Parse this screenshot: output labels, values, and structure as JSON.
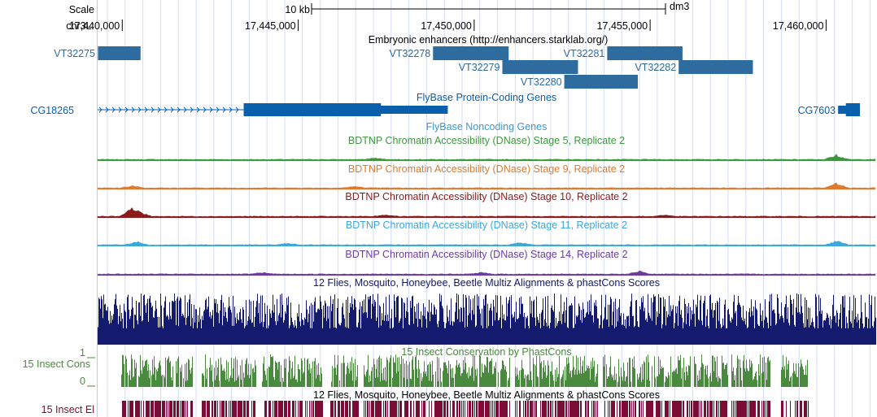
{
  "ruler": {
    "scale_label": "Scale",
    "scale_bar_label": "10 kb",
    "assembly": "dm3",
    "chrom_label": "chr3L:",
    "ticks": [
      {
        "pos": 17440000,
        "label": "17,440,000"
      },
      {
        "pos": 17445000,
        "label": "17,445,000"
      },
      {
        "pos": 17450000,
        "label": "17,450,000"
      },
      {
        "pos": 17455000,
        "label": "17,455,000"
      },
      {
        "pos": 17460000,
        "label": "17,460,000"
      }
    ]
  },
  "view": {
    "start": 17439300,
    "end": 17461400
  },
  "enhancers": {
    "title": "Embryonic enhancers (http://enhancers.starklab.org/)",
    "color": "#2e6b9e",
    "features": [
      {
        "name": "VT32275",
        "start": 17439310,
        "end": 17440520,
        "row": 0
      },
      {
        "name": "VT32278",
        "start": 17448830,
        "end": 17450980,
        "row": 0
      },
      {
        "name": "VT32281",
        "start": 17453780,
        "end": 17455920,
        "row": 0
      },
      {
        "name": "VT32279",
        "start": 17450800,
        "end": 17452950,
        "row": 1
      },
      {
        "name": "VT32282",
        "start": 17455810,
        "end": 17457920,
        "row": 1
      },
      {
        "name": "VT32280",
        "start": 17452560,
        "end": 17454650,
        "row": 2
      }
    ]
  },
  "coding_genes": {
    "title": "FlyBase Protein-Coding Genes",
    "color": "#0a5fad",
    "genes": [
      {
        "name": "CG18265",
        "intron_start": 17439300,
        "intron_end": 17443450,
        "thin": [
          17446700,
          17449250
        ],
        "thick": [
          17443450,
          17447350
        ]
      },
      {
        "name": "CG7603",
        "intron_start": 17460340,
        "intron_end": 17460960,
        "thin": [
          17460340,
          17460960
        ],
        "thick": [
          17460560,
          17460960
        ]
      }
    ]
  },
  "noncoding_genes": {
    "title": "FlyBase Noncoding Genes",
    "color": "#3a9ad9"
  },
  "dnase_tracks": [
    {
      "title": "BDTNP Chromatin Accessibility (DNase) Stage 5, Replicate 2",
      "color": "#3a9a3a",
      "peaks": [
        {
          "pos": 17460300,
          "height": 6
        },
        {
          "pos": 17447200,
          "height": 2
        }
      ]
    },
    {
      "title": "BDTNP Chromatin Accessibility (DNase) Stage 9, Replicate 2",
      "color": "#e07a2e",
      "peaks": [
        {
          "pos": 17440300,
          "height": 3
        },
        {
          "pos": 17460300,
          "height": 6
        },
        {
          "pos": 17446600,
          "height": 2
        }
      ]
    },
    {
      "title": "BDTNP Chromatin Accessibility (DNase) Stage 10, Replicate 2",
      "color": "#8b1a1a",
      "peaks": [
        {
          "pos": 17440260,
          "height": 9
        },
        {
          "pos": 17440500,
          "height": 5
        },
        {
          "pos": 17447500,
          "height": 2
        },
        {
          "pos": 17455400,
          "height": 2
        }
      ]
    },
    {
      "title": "BDTNP Chromatin Accessibility (DNase) Stage 11, Replicate 2",
      "color": "#3fa6d9",
      "peaks": [
        {
          "pos": 17440400,
          "height": 4
        },
        {
          "pos": 17460300,
          "height": 5
        },
        {
          "pos": 17451300,
          "height": 3
        },
        {
          "pos": 17444700,
          "height": 2
        }
      ]
    },
    {
      "title": "BDTNP Chromatin Accessibility (DNase) Stage 14, Replicate 2",
      "color": "#6b3d9e",
      "peaks": [
        {
          "pos": 17454700,
          "height": 4
        },
        {
          "pos": 17444000,
          "height": 2
        },
        {
          "pos": 17450200,
          "height": 2
        }
      ]
    }
  ],
  "multiz": {
    "title": "12 Flies, Mosquito, Honeybee, Beetle Multiz Alignments & phastCons Scores",
    "color": "#141a6e"
  },
  "phastcons": {
    "label": "15 Insect Cons",
    "title": "15 Insect Conservation by PhastCons",
    "color": "#4a8a3e",
    "ymax_label": "1",
    "ymin_label": "0",
    "gaps": [
      [
        17439300,
        17439950
      ],
      [
        17442000,
        17442250
      ],
      [
        17443800,
        17443950
      ],
      [
        17445700,
        17445900
      ],
      [
        17446700,
        17446850
      ],
      [
        17451000,
        17451150
      ],
      [
        17453500,
        17453650
      ],
      [
        17457200,
        17457300
      ],
      [
        17458400,
        17458700
      ],
      [
        17459500,
        17461400
      ]
    ]
  },
  "elements": {
    "label": "15 Insect El",
    "title": "12 Flies, Mosquito, Honeybee, Beetle Multiz Alignments & phastCons Scores",
    "color": "#7a0c36"
  }
}
